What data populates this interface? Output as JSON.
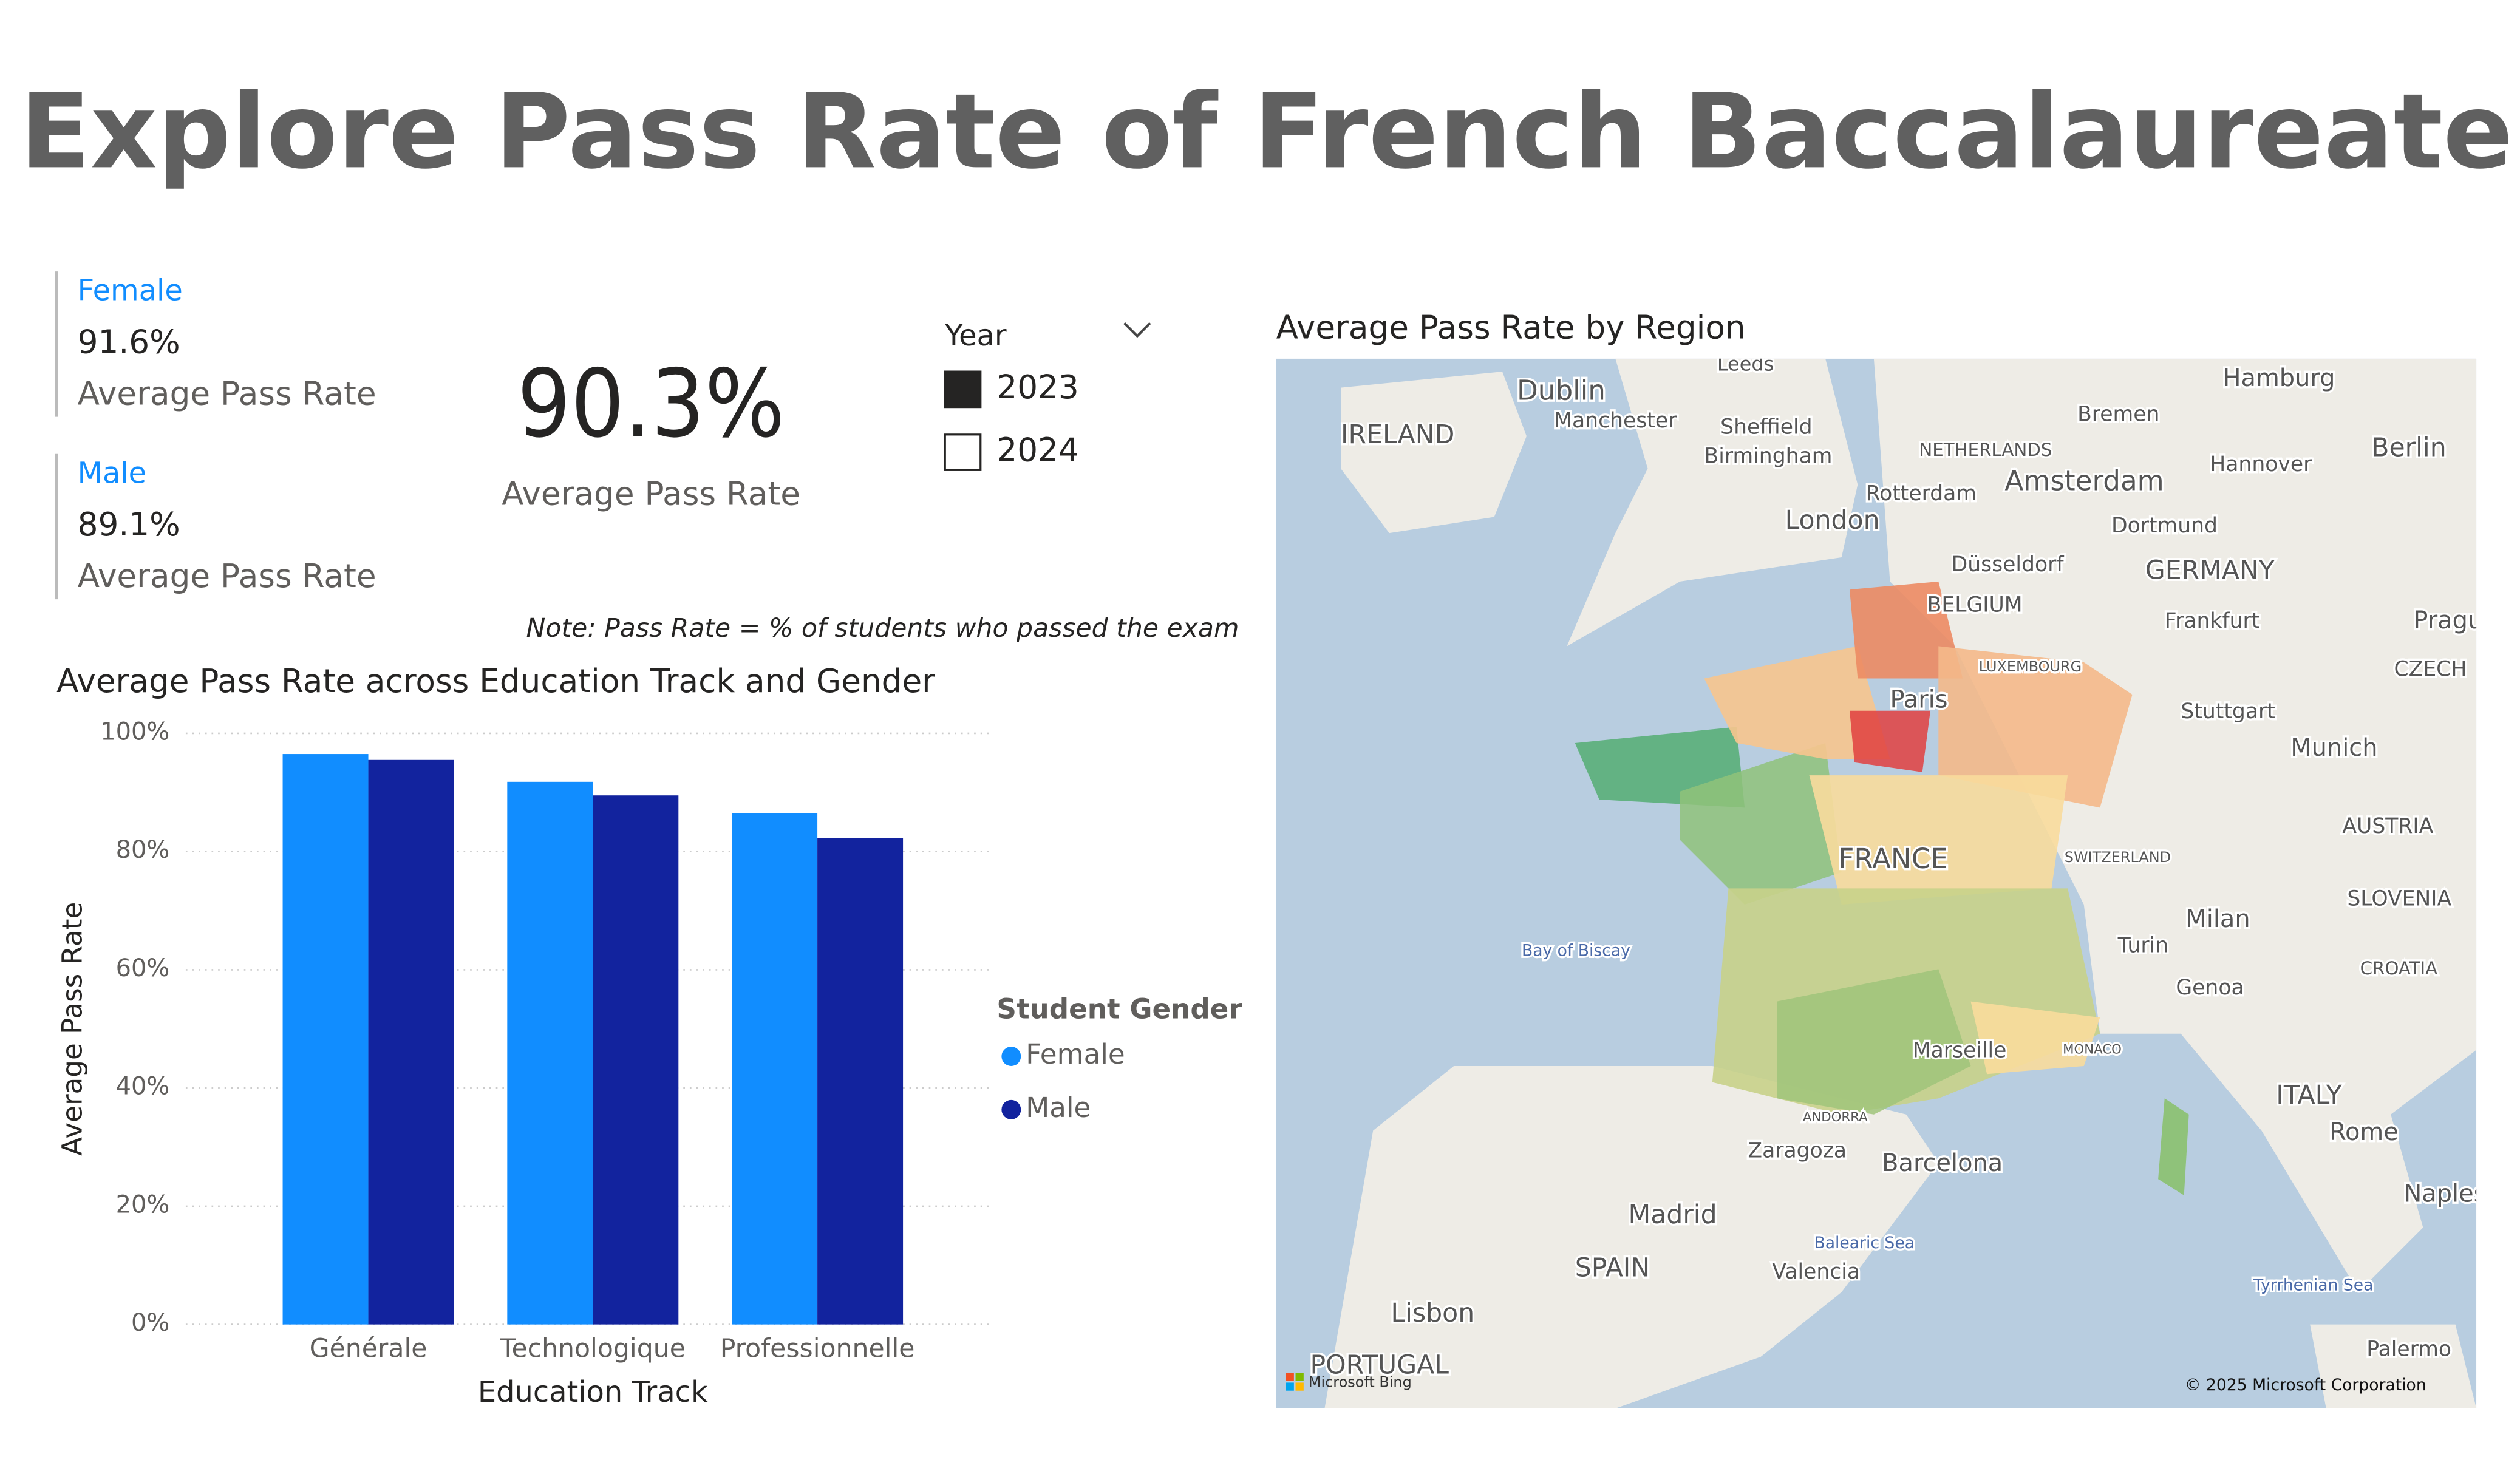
{
  "header": {
    "title": "Explore Pass Rate of French Baccalaureate"
  },
  "cards": [
    {
      "label": "Female",
      "value": "91.6%",
      "caption": "Average Pass Rate"
    },
    {
      "label": "Male",
      "value": "89.1%",
      "caption": "Average Pass Rate"
    }
  ],
  "kpi": {
    "value": "90.3%",
    "caption": "Average Pass Rate"
  },
  "slicer": {
    "title": "Year",
    "options": [
      "2023",
      "2024"
    ],
    "selected": "2023"
  },
  "note": "Note: Pass Rate = % of students who passed the exam",
  "chart_data": {
    "type": "bar",
    "title": "Average Pass Rate across Education Track and Gender",
    "categories": [
      "Générale",
      "Technologique",
      "Professionnelle"
    ],
    "series": [
      {
        "name": "Female",
        "color": "#118dff",
        "values": [
          96.5,
          91.8,
          86.5
        ]
      },
      {
        "name": "Male",
        "color": "#12239e",
        "values": [
          95.5,
          89.5,
          82.3
        ]
      }
    ],
    "ylim": [
      0,
      100
    ],
    "yticks": [
      {
        "value": 0,
        "label": "0%"
      },
      {
        "value": 20,
        "label": "20%"
      },
      {
        "value": 40,
        "label": "40%"
      },
      {
        "value": 60,
        "label": "60%"
      },
      {
        "value": 80,
        "label": "80%"
      },
      {
        "value": 100,
        "label": "100%"
      }
    ],
    "x_label": "Education Track",
    "y_label": "Average Pass Rate",
    "legend_title": "Student Gender",
    "legend_position": "right",
    "grid": true
  },
  "map": {
    "title": "Average Pass Rate by Region",
    "labels": [
      "Leeds",
      "Dublin",
      "IRELAND",
      "Manchester",
      "Sheffield",
      "Birmingham",
      "Hamburg",
      "Bremen",
      "Berlin",
      "NETHERLANDS",
      "Hannover",
      "Rotterdam",
      "Amsterdam",
      "London",
      "Dortmund",
      "Düsseldorf",
      "GERMANY",
      "BELGIUM",
      "Frankfurt",
      "Prague",
      "CZECH",
      "LUXEMBOURG",
      "Paris",
      "Stuttgart",
      "Munich",
      "AUSTRIA",
      "FRANCE",
      "SWITZERLAND",
      "SLOVENIA",
      "Milan",
      "Turin",
      "Bay of Biscay",
      "Genoa",
      "CROATIA",
      "MONACO",
      "Marseille",
      "ITALY",
      "ANDORRA",
      "Rome",
      "Zaragoza",
      "Barcelona",
      "Naples",
      "Madrid",
      "Balearic Sea",
      "SPAIN",
      "Valencia",
      "Tyrrhenian Sea",
      "Lisbon",
      "Palermo",
      "PORTUGAL"
    ],
    "attribution": [
      "Microsoft Bing",
      "© 2025 Microsoft Corporation"
    ]
  }
}
